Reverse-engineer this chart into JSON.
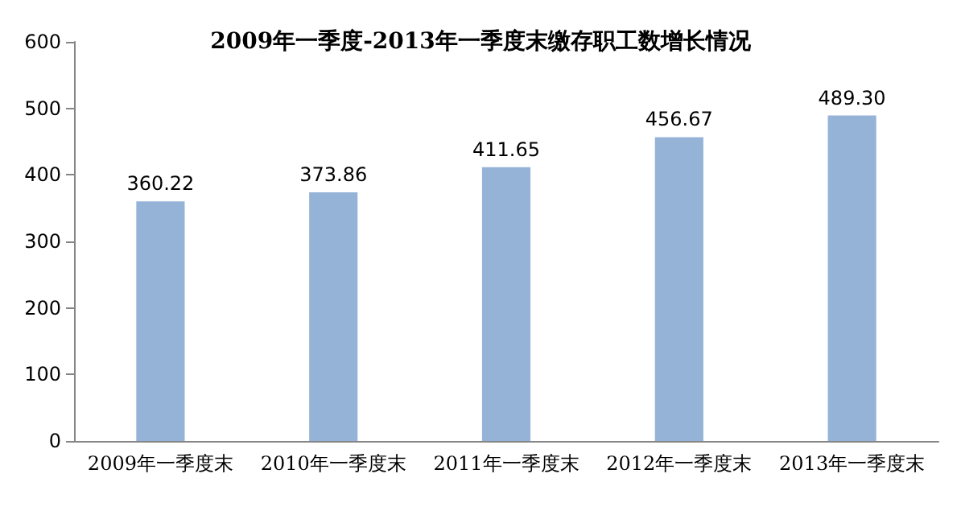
{
  "chart_data": {
    "type": "bar",
    "title": "2009年一季度-2013年一季度末缴存职工数增长情况",
    "categories": [
      "2009年一季度末",
      "2010年一季度末",
      "2011年一季度末",
      "2012年一季度末",
      "2013年一季度末"
    ],
    "values": [
      360.22,
      373.86,
      411.65,
      456.67,
      489.3
    ],
    "value_labels": [
      "360.22",
      "373.86",
      "411.65",
      "456.67",
      "489.30"
    ],
    "color": "#95b3d7",
    "ylim": [
      0,
      600
    ],
    "yticks": [
      0,
      100,
      200,
      300,
      400,
      500,
      600
    ],
    "grid": false
  }
}
